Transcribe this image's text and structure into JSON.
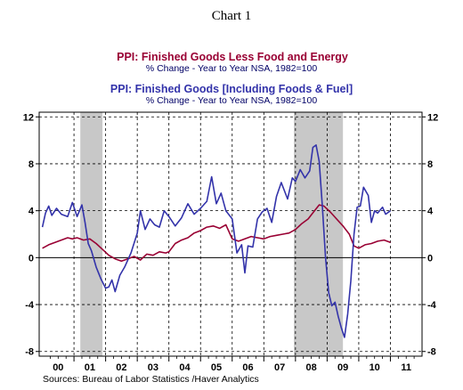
{
  "chart_data": {
    "type": "line",
    "title": "Chart 1",
    "source": "Sources:  Bureau of Labor Statistics /Haver Analytics",
    "ylim": [
      -8.4,
      12.4
    ],
    "xlim": [
      1999.9,
      2012.0
    ],
    "y_ticks": [
      -8,
      -4,
      0,
      4,
      8,
      12
    ],
    "y_tick_labels": [
      "-8",
      "-4",
      "0",
      "4",
      "8",
      "12"
    ],
    "x_tick_labels": [
      {
        "label": "00",
        "pos": 2000.5
      },
      {
        "label": "01",
        "pos": 2001.5
      },
      {
        "label": "02",
        "pos": 2002.5
      },
      {
        "label": "03",
        "pos": 2003.5
      },
      {
        "label": "04",
        "pos": 2004.5
      },
      {
        "label": "05",
        "pos": 2005.5
      },
      {
        "label": "06",
        "pos": 2006.5
      },
      {
        "label": "07",
        "pos": 2007.5
      },
      {
        "label": "08",
        "pos": 2008.5
      },
      {
        "label": "09",
        "pos": 2009.5
      },
      {
        "label": "10",
        "pos": 2010.5
      },
      {
        "label": "11",
        "pos": 2011.5
      }
    ],
    "year_boundaries": [
      2001,
      2002,
      2003,
      2004,
      2005,
      2006,
      2007,
      2008,
      2009,
      2010,
      2011
    ],
    "recessions": [
      [
        2001.2,
        2001.9
      ],
      [
        2007.95,
        2009.5
      ]
    ],
    "grid": true,
    "series": [
      {
        "name": "PPI: Finished Goods Less Food and Energy",
        "subtitle": "% Change - Year to Year    NSA, 1982=100",
        "color": "#990033",
        "points": [
          [
            2000.0,
            0.8
          ],
          [
            2000.2,
            1.1
          ],
          [
            2000.4,
            1.3
          ],
          [
            2000.6,
            1.5
          ],
          [
            2000.8,
            1.7
          ],
          [
            2000.95,
            1.6
          ],
          [
            2001.1,
            1.7
          ],
          [
            2001.3,
            1.5
          ],
          [
            2001.5,
            1.6
          ],
          [
            2001.7,
            1.2
          ],
          [
            2001.9,
            0.7
          ],
          [
            2002.1,
            0.2
          ],
          [
            2002.3,
            -0.1
          ],
          [
            2002.5,
            -0.3
          ],
          [
            2002.7,
            -0.1
          ],
          [
            2002.9,
            0.1
          ],
          [
            2003.1,
            -0.2
          ],
          [
            2003.3,
            0.3
          ],
          [
            2003.5,
            0.2
          ],
          [
            2003.7,
            0.5
          ],
          [
            2003.9,
            0.4
          ],
          [
            2004.0,
            0.5
          ],
          [
            2004.2,
            1.2
          ],
          [
            2004.4,
            1.5
          ],
          [
            2004.6,
            1.7
          ],
          [
            2004.8,
            2.1
          ],
          [
            2005.0,
            2.3
          ],
          [
            2005.2,
            2.6
          ],
          [
            2005.4,
            2.7
          ],
          [
            2005.6,
            2.5
          ],
          [
            2005.8,
            2.8
          ],
          [
            2006.0,
            1.6
          ],
          [
            2006.2,
            1.4
          ],
          [
            2006.4,
            1.6
          ],
          [
            2006.6,
            1.8
          ],
          [
            2006.8,
            1.7
          ],
          [
            2007.0,
            1.6
          ],
          [
            2007.2,
            1.8
          ],
          [
            2007.4,
            1.9
          ],
          [
            2007.6,
            2.0
          ],
          [
            2007.8,
            2.1
          ],
          [
            2008.0,
            2.4
          ],
          [
            2008.2,
            2.9
          ],
          [
            2008.4,
            3.3
          ],
          [
            2008.6,
            4.0
          ],
          [
            2008.75,
            4.5
          ],
          [
            2008.9,
            4.4
          ],
          [
            2009.1,
            3.9
          ],
          [
            2009.3,
            3.3
          ],
          [
            2009.5,
            2.7
          ],
          [
            2009.7,
            2.0
          ],
          [
            2009.85,
            1.0
          ],
          [
            2010.0,
            0.8
          ],
          [
            2010.2,
            1.1
          ],
          [
            2010.4,
            1.2
          ],
          [
            2010.6,
            1.4
          ],
          [
            2010.8,
            1.5
          ],
          [
            2011.0,
            1.3
          ]
        ]
      },
      {
        "name": "PPI: Finished Goods [Including Foods & Fuel]",
        "subtitle": "% Change - Year to Year    NSA, 1982=100",
        "color": "#3333aa",
        "points": [
          [
            2000.0,
            2.6
          ],
          [
            2000.1,
            3.8
          ],
          [
            2000.2,
            4.4
          ],
          [
            2000.3,
            3.6
          ],
          [
            2000.45,
            4.2
          ],
          [
            2000.6,
            3.7
          ],
          [
            2000.8,
            3.5
          ],
          [
            2000.95,
            4.7
          ],
          [
            2001.1,
            3.5
          ],
          [
            2001.25,
            4.5
          ],
          [
            2001.35,
            3.0
          ],
          [
            2001.45,
            1.2
          ],
          [
            2001.55,
            0.6
          ],
          [
            2001.7,
            -0.8
          ],
          [
            2001.85,
            -1.8
          ],
          [
            2002.0,
            -2.6
          ],
          [
            2002.1,
            -2.5
          ],
          [
            2002.2,
            -1.9
          ],
          [
            2002.3,
            -2.9
          ],
          [
            2002.45,
            -1.5
          ],
          [
            2002.6,
            -0.8
          ],
          [
            2002.8,
            0.4
          ],
          [
            2003.0,
            2.1
          ],
          [
            2003.1,
            4.0
          ],
          [
            2003.25,
            2.4
          ],
          [
            2003.4,
            3.3
          ],
          [
            2003.55,
            2.8
          ],
          [
            2003.7,
            2.6
          ],
          [
            2003.85,
            4.0
          ],
          [
            2004.0,
            3.5
          ],
          [
            2004.2,
            2.7
          ],
          [
            2004.4,
            3.4
          ],
          [
            2004.6,
            4.6
          ],
          [
            2004.8,
            3.7
          ],
          [
            2005.0,
            4.2
          ],
          [
            2005.2,
            4.8
          ],
          [
            2005.35,
            6.9
          ],
          [
            2005.5,
            4.6
          ],
          [
            2005.65,
            5.5
          ],
          [
            2005.8,
            4.0
          ],
          [
            2006.0,
            3.3
          ],
          [
            2006.15,
            0.4
          ],
          [
            2006.3,
            1.1
          ],
          [
            2006.4,
            -1.3
          ],
          [
            2006.5,
            1.0
          ],
          [
            2006.65,
            0.9
          ],
          [
            2006.8,
            3.3
          ],
          [
            2006.95,
            3.9
          ],
          [
            2007.1,
            4.2
          ],
          [
            2007.25,
            3.0
          ],
          [
            2007.4,
            5.2
          ],
          [
            2007.55,
            6.4
          ],
          [
            2007.75,
            5.0
          ],
          [
            2007.9,
            6.8
          ],
          [
            2008.0,
            6.5
          ],
          [
            2008.15,
            7.5
          ],
          [
            2008.3,
            6.8
          ],
          [
            2008.45,
            7.4
          ],
          [
            2008.55,
            9.4
          ],
          [
            2008.65,
            9.6
          ],
          [
            2008.75,
            8.2
          ],
          [
            2008.85,
            4.3
          ],
          [
            2008.95,
            0.0
          ],
          [
            2009.05,
            -3.0
          ],
          [
            2009.15,
            -4.1
          ],
          [
            2009.25,
            -3.8
          ],
          [
            2009.35,
            -5.0
          ],
          [
            2009.45,
            -6.0
          ],
          [
            2009.55,
            -6.8
          ],
          [
            2009.65,
            -4.8
          ],
          [
            2009.75,
            -2.0
          ],
          [
            2009.85,
            2.0
          ],
          [
            2009.95,
            4.3
          ],
          [
            2010.05,
            4.4
          ],
          [
            2010.15,
            6.0
          ],
          [
            2010.3,
            5.3
          ],
          [
            2010.4,
            3.0
          ],
          [
            2010.5,
            4.0
          ],
          [
            2010.6,
            3.8
          ],
          [
            2010.75,
            4.3
          ],
          [
            2010.85,
            3.7
          ],
          [
            2011.0,
            4.0
          ]
        ]
      }
    ]
  }
}
